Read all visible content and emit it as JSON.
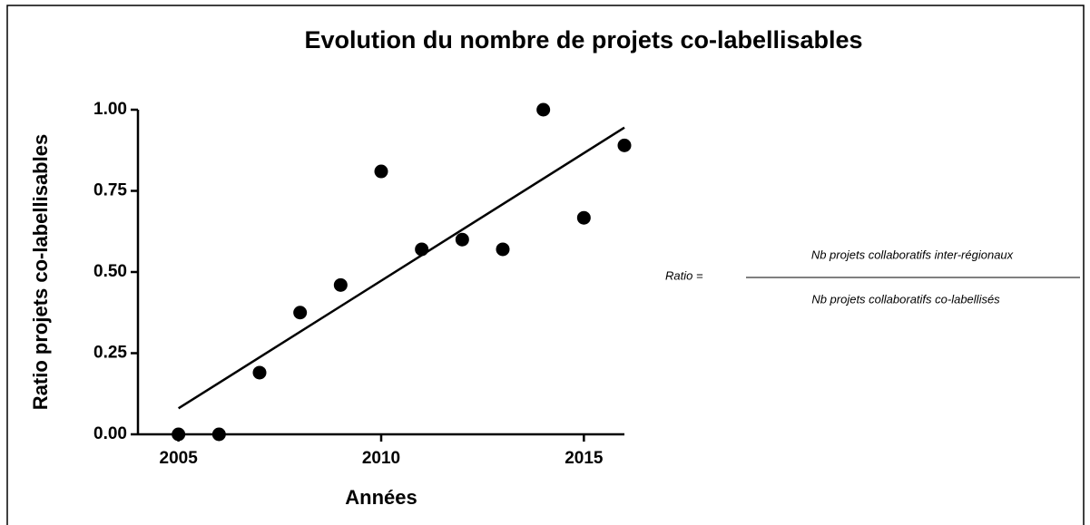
{
  "chart_data": {
    "type": "scatter",
    "title": "Evolution du nombre de projets co-labellisables",
    "x_label": "Années",
    "y_label": "Ratio projets co-labellisables",
    "x": [
      2005,
      2006,
      2007,
      2008,
      2009,
      2010,
      2011,
      2012,
      2013,
      2014,
      2015,
      2016
    ],
    "values": [
      0,
      0,
      0.19,
      0.375,
      0.46,
      0.81,
      0.57,
      0.6,
      0.57,
      1.0,
      0.667,
      0.89
    ],
    "color": "#000000",
    "trendline": {
      "x": [
        2005,
        2016
      ],
      "values": [
        0.08,
        0.945
      ]
    },
    "xlim": [
      2004,
      2016
    ],
    "ylim": [
      0,
      1
    ],
    "xticks": [
      2005,
      2010,
      2015
    ],
    "yticks": [
      {
        "value": 0,
        "label": "0.00"
      },
      {
        "value": 0.25,
        "label": "0.25"
      },
      {
        "value": 0.5,
        "label": "0.50"
      },
      {
        "value": 0.75,
        "label": "0.75"
      },
      {
        "value": 1,
        "label": "1.00"
      }
    ],
    "grid": false,
    "annotations": {
      "ratio": "Ratio =",
      "numerator": "Nb projets collaboratifs inter-régionaux",
      "denominator": "Nb projets collaboratifs co-labellisés"
    }
  }
}
